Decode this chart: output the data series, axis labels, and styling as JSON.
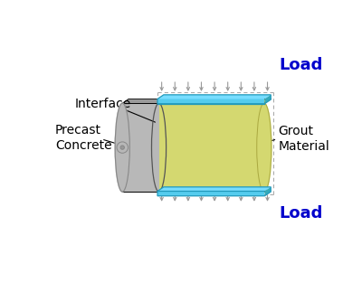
{
  "background_color": "#ffffff",
  "grout_color": "#d4d870",
  "grout_top_color": "#c8cc55",
  "grout_side_color": "#c0c460",
  "concrete_color": "#b8b8b8",
  "concrete_dark": "#999999",
  "plate_color": "#55ccee",
  "plate_top_color": "#77ddff",
  "plate_dark_color": "#33aabb",
  "plate_edge_color": "#2299bb",
  "arrow_color": "#999999",
  "dash_color": "#aaaaaa",
  "load_color": "#0000cc",
  "load_fontsize": 13,
  "ann_fontsize": 10,
  "labels": {
    "load_top": "Load",
    "load_bot": "Load",
    "interface": "Interface",
    "concrete": "Precast\nConcrete",
    "grout": "Grout\nMaterial"
  }
}
